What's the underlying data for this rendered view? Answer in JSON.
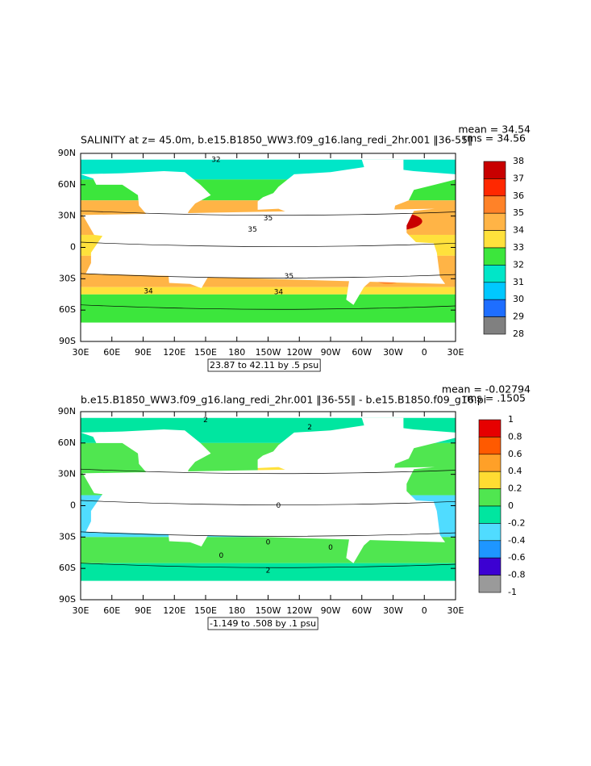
{
  "panels": [
    {
      "title": "SALINITY at z=  45.0m, b.e15.B1850_WW3.f09_g16.lang_redi_2hr.001 ‖36-55‖",
      "mean": "mean = 34.54",
      "rms": "rms = 34.56",
      "range_note": "23.87 to 42.11 by .5 psu",
      "lat_labels": [
        "90N",
        "60N",
        "30N",
        "0",
        "30S",
        "60S",
        "90S"
      ],
      "lon_labels": [
        "30E",
        "60E",
        "90E",
        "120E",
        "150E",
        "180",
        "150W",
        "120W",
        "90W",
        "60W",
        "30W",
        "0",
        "30E"
      ],
      "colorbar": {
        "levels": [
          38,
          37,
          36,
          35,
          34,
          33,
          32,
          31,
          30,
          29,
          28
        ],
        "colors": [
          "#c80000",
          "#ff2800",
          "#ff8228",
          "#ffb446",
          "#ffe13c",
          "#3ce63c",
          "#00e6c8",
          "#00c8ff",
          "#1e6eff",
          "#808080"
        ]
      },
      "contour_labels": [
        "32",
        "35",
        "35",
        "34",
        "34",
        "35"
      ]
    },
    {
      "title": "b.e15.B1850_WW3.f09_g16.lang_redi_2hr.001 ‖36-55‖ - b.e15.B1850.f09_g16.pi",
      "mean": "mean = -0.02794",
      "rms": "rms = .1505",
      "range_note": "-1.149 to .508 by .1 psu",
      "lat_labels": [
        "90N",
        "60N",
        "30N",
        "0",
        "30S",
        "60S",
        "90S"
      ],
      "lon_labels": [
        "30E",
        "60E",
        "90E",
        "120E",
        "150E",
        "180",
        "150W",
        "120W",
        "90W",
        "60W",
        "30W",
        "0",
        "30E"
      ],
      "colorbar": {
        "levels": [
          1,
          0.8,
          0.6,
          0.4,
          0.2,
          0,
          -0.2,
          -0.4,
          -0.6,
          -0.8,
          -1
        ],
        "colors": [
          "#e60000",
          "#ff5a00",
          "#ffa028",
          "#ffdc32",
          "#50e650",
          "#00e6a0",
          "#50dcff",
          "#1e96ff",
          "#3c00d2",
          "#9a9a9a"
        ]
      },
      "contour_labels": [
        "2",
        "2",
        "0",
        "0",
        "0",
        "0",
        "2"
      ]
    }
  ]
}
